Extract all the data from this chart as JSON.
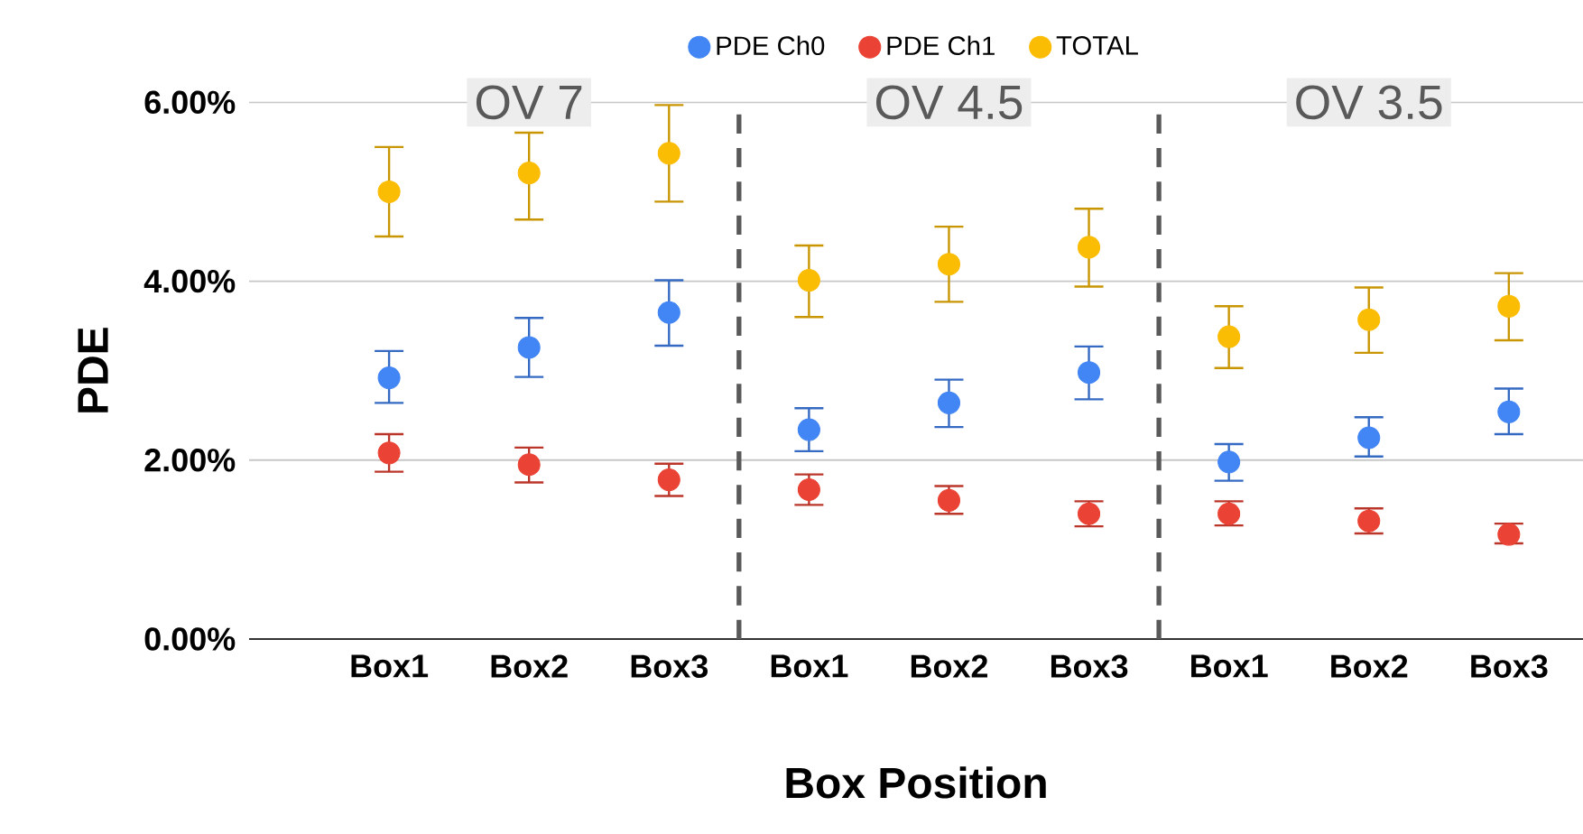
{
  "chart_data": {
    "type": "scatter",
    "xlabel": "Box Position",
    "ylabel": "PDE",
    "categories": [
      "Box1",
      "Box2",
      "Box3",
      "Box1",
      "Box2",
      "Box3",
      "Box1",
      "Box2",
      "Box3"
    ],
    "series": [
      {
        "name": "PDE Ch0",
        "color": "#4285f4",
        "values": [
          2.92,
          3.26,
          3.65,
          2.34,
          2.64,
          2.98,
          1.98,
          2.25,
          2.54
        ],
        "errors": [
          [
            2.64,
            3.22
          ],
          [
            2.93,
            3.59
          ],
          [
            3.28,
            4.01
          ],
          [
            2.1,
            2.58
          ],
          [
            2.37,
            2.9
          ],
          [
            2.68,
            3.27
          ],
          [
            1.77,
            2.18
          ],
          [
            2.04,
            2.48
          ],
          [
            2.29,
            2.8
          ]
        ]
      },
      {
        "name": "PDE Ch1",
        "color": "#ea4335",
        "values": [
          2.08,
          1.95,
          1.78,
          1.67,
          1.55,
          1.4,
          1.4,
          1.32,
          1.17
        ],
        "errors": [
          [
            1.87,
            2.29
          ],
          [
            1.75,
            2.14
          ],
          [
            1.6,
            1.96
          ],
          [
            1.5,
            1.84
          ],
          [
            1.4,
            1.71
          ],
          [
            1.26,
            1.54
          ],
          [
            1.27,
            1.54
          ],
          [
            1.18,
            1.46
          ],
          [
            1.07,
            1.29
          ]
        ]
      },
      {
        "name": "TOTAL",
        "color": "#fbbc04",
        "values": [
          5.0,
          5.21,
          5.43,
          4.01,
          4.19,
          4.38,
          3.38,
          3.57,
          3.72
        ],
        "errors": [
          [
            4.5,
            5.5
          ],
          [
            4.69,
            5.66
          ],
          [
            4.89,
            5.97
          ],
          [
            3.6,
            4.4
          ],
          [
            3.77,
            4.61
          ],
          [
            3.94,
            4.81
          ],
          [
            3.03,
            3.72
          ],
          [
            3.2,
            3.93
          ],
          [
            3.34,
            4.09
          ]
        ]
      }
    ],
    "ylim": [
      0,
      6
    ],
    "yticks": [
      {
        "value": 0,
        "label": "0.00%"
      },
      {
        "value": 2,
        "label": "2.00%"
      },
      {
        "value": 4,
        "label": "4.00%"
      },
      {
        "value": 6,
        "label": "6.00%"
      }
    ],
    "annotations": [
      "OV 7",
      "OV 4.5",
      "OV 3.5"
    ],
    "grid": "y",
    "legend": "top"
  }
}
